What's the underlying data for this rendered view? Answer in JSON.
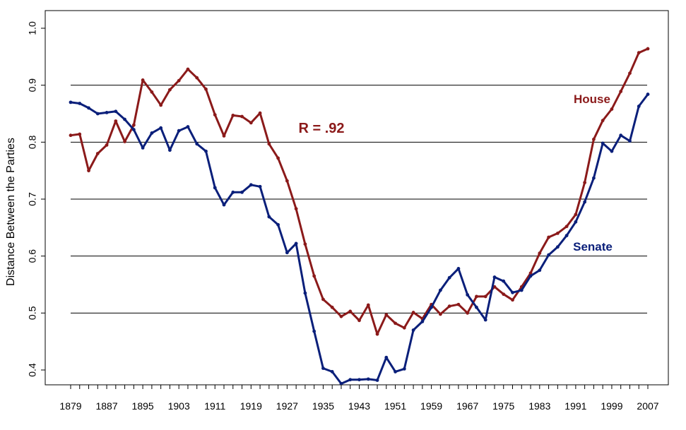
{
  "chart_data": {
    "type": "line",
    "title": "",
    "xlabel": "",
    "ylabel": "Distance Between the Parties",
    "xlim": [
      1879,
      2007
    ],
    "ylim": [
      0.4,
      1.0
    ],
    "y_ticks": [
      "0.4",
      "0.5",
      "0.6",
      "0.7",
      "0.8",
      "0.9",
      "1.0"
    ],
    "x_ticks": [
      "1879",
      "1887",
      "1895",
      "1903",
      "1911",
      "1919",
      "1927",
      "1935",
      "1943",
      "1951",
      "1959",
      "1967",
      "1975",
      "1983",
      "1991",
      "1999",
      "2007"
    ],
    "gridlines_y": [
      0.5,
      0.6,
      0.7,
      0.8,
      0.9
    ],
    "annotation": "R = .92",
    "series": [
      {
        "name": "House",
        "color": "#8B1A1A",
        "x": [
          1879,
          1881,
          1883,
          1885,
          1887,
          1889,
          1891,
          1893,
          1895,
          1897,
          1899,
          1901,
          1903,
          1905,
          1907,
          1909,
          1911,
          1913,
          1915,
          1917,
          1919,
          1921,
          1923,
          1925,
          1927,
          1929,
          1931,
          1933,
          1935,
          1937,
          1939,
          1941,
          1943,
          1945,
          1947,
          1949,
          1951,
          1953,
          1955,
          1957,
          1959,
          1961,
          1963,
          1965,
          1967,
          1969,
          1971,
          1973,
          1975,
          1977,
          1979,
          1981,
          1983,
          1985,
          1987,
          1989,
          1991,
          1993,
          1995,
          1997,
          1999,
          2001,
          2003,
          2005,
          2007
        ],
        "values": [
          0.812,
          0.814,
          0.75,
          0.78,
          0.795,
          0.837,
          0.801,
          0.83,
          0.909,
          0.888,
          0.865,
          0.892,
          0.908,
          0.928,
          0.913,
          0.893,
          0.848,
          0.811,
          0.847,
          0.845,
          0.834,
          0.851,
          0.797,
          0.772,
          0.732,
          0.683,
          0.621,
          0.565,
          0.524,
          0.51,
          0.494,
          0.503,
          0.487,
          0.514,
          0.463,
          0.497,
          0.482,
          0.474,
          0.501,
          0.49,
          0.515,
          0.498,
          0.512,
          0.515,
          0.5,
          0.529,
          0.529,
          0.546,
          0.533,
          0.523,
          0.546,
          0.57,
          0.605,
          0.633,
          0.64,
          0.652,
          0.673,
          0.729,
          0.805,
          0.838,
          0.858,
          0.889,
          0.921,
          0.957,
          0.964
        ]
      },
      {
        "name": "Senate",
        "color": "#0A1F7A",
        "x": [
          1879,
          1881,
          1883,
          1885,
          1887,
          1889,
          1891,
          1893,
          1895,
          1897,
          1899,
          1901,
          1903,
          1905,
          1907,
          1909,
          1911,
          1913,
          1915,
          1917,
          1919,
          1921,
          1923,
          1925,
          1927,
          1929,
          1931,
          1933,
          1935,
          1937,
          1939,
          1941,
          1943,
          1945,
          1947,
          1949,
          1951,
          1953,
          1955,
          1957,
          1959,
          1961,
          1963,
          1965,
          1967,
          1969,
          1971,
          1973,
          1975,
          1977,
          1979,
          1981,
          1983,
          1985,
          1987,
          1989,
          1991,
          1993,
          1995,
          1997,
          1999,
          2001,
          2003,
          2005,
          2007
        ],
        "values": [
          0.87,
          0.868,
          0.86,
          0.85,
          0.852,
          0.854,
          0.84,
          0.822,
          0.79,
          0.816,
          0.825,
          0.786,
          0.82,
          0.827,
          0.797,
          0.784,
          0.72,
          0.69,
          0.712,
          0.712,
          0.725,
          0.722,
          0.669,
          0.655,
          0.606,
          0.622,
          0.535,
          0.468,
          0.403,
          0.397,
          0.376,
          0.383,
          0.383,
          0.384,
          0.382,
          0.422,
          0.397,
          0.402,
          0.47,
          0.485,
          0.51,
          0.54,
          0.562,
          0.578,
          0.532,
          0.51,
          0.488,
          0.563,
          0.556,
          0.536,
          0.54,
          0.565,
          0.575,
          0.602,
          0.616,
          0.636,
          0.66,
          0.695,
          0.737,
          0.798,
          0.784,
          0.812,
          0.802,
          0.863,
          0.884
        ]
      }
    ],
    "series_labels": [
      "House",
      "Senate"
    ]
  }
}
